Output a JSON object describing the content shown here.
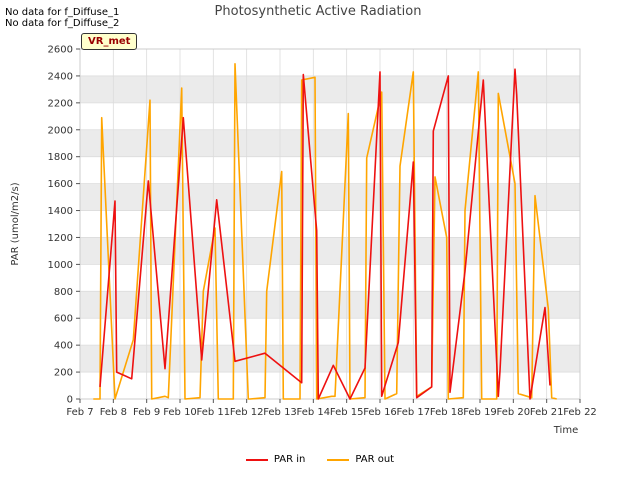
{
  "notes": [
    "No data for f_Diffuse_1",
    "No data for f_Diffuse_2"
  ],
  "badge": "VR_met",
  "colors": {
    "par_in": "#ee1111",
    "par_out": "#ffa500",
    "band": "#ebebeb",
    "grid": "#dcdcdc"
  },
  "chart_data": {
    "type": "line",
    "title": "Photosynthetic Active Radiation",
    "xlabel": "Time",
    "ylabel": "PAR (umol/m2/s)",
    "xlim": [
      7,
      22
    ],
    "ylim": [
      0,
      2600
    ],
    "xticks": [
      7,
      8,
      9,
      10,
      11,
      12,
      13,
      14,
      15,
      16,
      17,
      18,
      19,
      20,
      21,
      22
    ],
    "xtick_labels": [
      "Feb 7",
      "Feb 8",
      "Feb 9",
      "Feb 10",
      "Feb 11",
      "Feb 12",
      "Feb 13",
      "Feb 14",
      "Feb 15",
      "Feb 16",
      "Feb 17",
      "Feb 18",
      "Feb 19",
      "Feb 20",
      "Feb 21",
      "Feb 22"
    ],
    "yticks": [
      0,
      200,
      400,
      600,
      800,
      1000,
      1200,
      1400,
      1600,
      1800,
      2000,
      2200,
      2400,
      2600
    ],
    "ytick_labels": [
      "0",
      "200",
      "400",
      "600",
      "800",
      "1000",
      "1200",
      "1400",
      "1600",
      "1800",
      "2000",
      "2200",
      "2400",
      "2600"
    ],
    "series": [
      {
        "name": "PAR in",
        "x": [
          7.6,
          8.05,
          8.1,
          8.55,
          9.05,
          9.55,
          10.1,
          10.65,
          11.1,
          11.65,
          12.55,
          13.65,
          13.7,
          14.1,
          14.15,
          14.6,
          15.1,
          15.55,
          16.0,
          16.05,
          16.55,
          17.0,
          17.1,
          17.55,
          17.6,
          18.05,
          18.1,
          18.55,
          19.1,
          19.55,
          19.6,
          20.05,
          20.1,
          20.5,
          20.95,
          21.1
        ],
        "y": [
          90,
          1470,
          200,
          150,
          1620,
          225,
          2090,
          290,
          1480,
          280,
          340,
          120,
          2410,
          1250,
          0,
          250,
          0,
          230,
          2430,
          20,
          420,
          1760,
          10,
          90,
          1990,
          2400,
          50,
          950,
          2370,
          20,
          210,
          2450,
          2260,
          0,
          680,
          100
        ]
      },
      {
        "name": "PAR out",
        "x": [
          7.4,
          7.6,
          7.65,
          8.05,
          8.6,
          9.1,
          9.15,
          9.55,
          9.65,
          10.05,
          10.15,
          10.6,
          10.7,
          11.05,
          11.15,
          11.6,
          11.65,
          12.05,
          12.1,
          12.55,
          12.6,
          13.05,
          13.1,
          13.6,
          13.65,
          14.05,
          14.1,
          14.55,
          14.65,
          15.05,
          15.1,
          15.55,
          15.6,
          16.05,
          16.15,
          16.5,
          16.6,
          17.0,
          17.1,
          17.55,
          17.65,
          18.0,
          18.05,
          18.5,
          18.55,
          18.95,
          19.05,
          19.5,
          19.55,
          20.05,
          20.15,
          20.55,
          20.65,
          21.05,
          21.15,
          21.3
        ],
        "y": [
          0,
          0,
          2090,
          0,
          440,
          2220,
          0,
          20,
          10,
          2310,
          0,
          10,
          800,
          1270,
          0,
          0,
          2490,
          0,
          0,
          10,
          800,
          1690,
          0,
          0,
          2370,
          2390,
          0,
          20,
          20,
          2120,
          0,
          10,
          1790,
          2280,
          0,
          40,
          1730,
          2430,
          20,
          90,
          1650,
          1200,
          0,
          10,
          1400,
          2430,
          0,
          0,
          2270,
          1600,
          40,
          10,
          1510,
          670,
          10,
          0
        ]
      }
    ],
    "legend": [
      "PAR in",
      "PAR out"
    ],
    "legend_position": "bottom-center"
  }
}
